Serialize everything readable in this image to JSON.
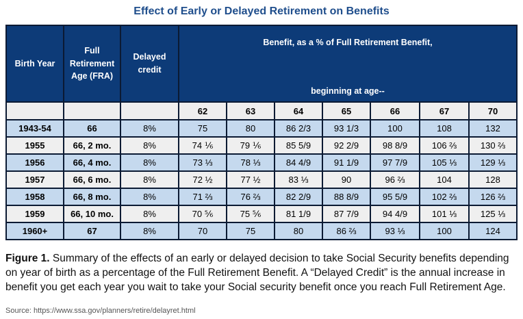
{
  "title": "Effect of Early or Delayed Retirement on Benefits",
  "table": {
    "headers": {
      "birth_year": "Birth Year",
      "fra": "Full Retirement Age (FRA)",
      "delayed": "Delayed credit",
      "benefit_line1": "Benefit, as a % of Full Retirement Benefit,",
      "benefit_line2": "beginning at age--"
    },
    "ages": [
      "62",
      "63",
      "64",
      "65",
      "66",
      "67",
      "70"
    ],
    "rows": [
      {
        "year": "1943-54",
        "fra": "66",
        "credit": "8%",
        "values": [
          "75",
          "80",
          "86 2/3",
          "93 1/3",
          "100",
          "108",
          "132"
        ]
      },
      {
        "year": "1955",
        "fra": "66, 2 mo.",
        "credit": "8%",
        "values": [
          "74 ⅙",
          "79 ⅙",
          "85 5/9",
          "92 2/9",
          "98 8/9",
          "106 ⅔",
          "130 ⅔"
        ]
      },
      {
        "year": "1956",
        "fra": "66, 4 mo.",
        "credit": "8%",
        "values": [
          "73 ⅓",
          "78 ⅓",
          "84 4/9",
          "91 1/9",
          "97 7/9",
          "105 ⅓",
          "129 ⅓"
        ]
      },
      {
        "year": "1957",
        "fra": "66, 6 mo.",
        "credit": "8%",
        "values": [
          "72 ½",
          "77 ½",
          "83 ⅓",
          "90",
          "96 ⅔",
          "104",
          "128"
        ]
      },
      {
        "year": "1958",
        "fra": "66, 8 mo.",
        "credit": "8%",
        "values": [
          "71 ⅔",
          "76 ⅔",
          "82 2/9",
          "88 8/9",
          "95 5/9",
          "102 ⅔",
          "126 ⅔"
        ]
      },
      {
        "year": "1959",
        "fra": "66, 10 mo.",
        "credit": "8%",
        "values": [
          "70 ⅚",
          "75 ⅚",
          "81 1/9",
          "87 7/9",
          "94 4/9",
          "101 ⅓",
          "125 ⅓"
        ]
      },
      {
        "year": "1960+",
        "fra": "67",
        "credit": "8%",
        "values": [
          "70",
          "75",
          "80",
          "86 ⅔",
          "93 ⅓",
          "100",
          "124"
        ]
      }
    ]
  },
  "caption": {
    "label": "Figure 1.",
    "text": " Summary of the effects of an early or delayed decision to take Social Security benefits depending on year of birth as a percentage of the Full Retirement Benefit. A “Delayed Credit” is the annual increase in benefit you get each year you wait to take your Social security benefit once you reach Full Retirement Age."
  },
  "source": "Source: https://www.ssa.gov/planners/retire/delayret.html"
}
